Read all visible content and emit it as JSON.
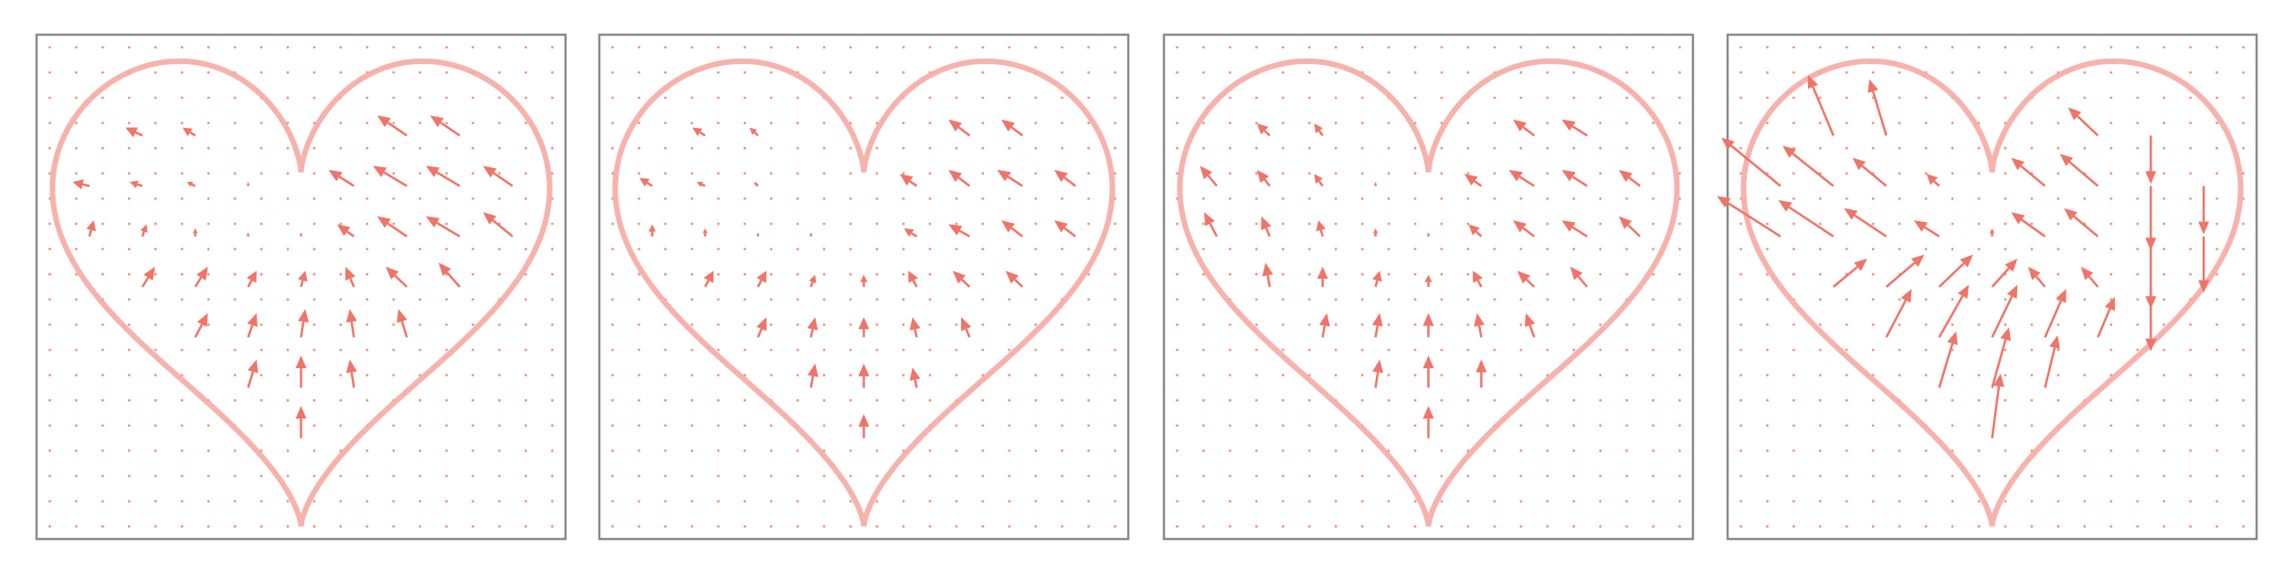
{
  "chart_data": {
    "type": "quiver",
    "xlim": [
      -1,
      1
    ],
    "ylim": [
      -1,
      1
    ],
    "grid": [
      -0.95,
      -0.85,
      -0.75,
      -0.65,
      -0.55,
      -0.45,
      -0.35,
      -0.25,
      -0.15,
      -0.05,
      0.05,
      0.15,
      0.25,
      0.35,
      0.45,
      0.55,
      0.65,
      0.75,
      0.85,
      0.95
    ],
    "color": "#f07468",
    "outline_color": "#f5aaa2",
    "x": [
      -0.6,
      -0.4,
      0.4,
      0.6,
      -0.8,
      -0.6,
      -0.4,
      -0.2,
      0.2,
      0.4,
      0.6,
      0.8,
      -0.8,
      -0.6,
      -0.4,
      -0.2,
      0,
      0.2,
      0.4,
      0.6,
      0.8,
      -0.6,
      -0.4,
      -0.2,
      0,
      0.2,
      0.4,
      0.6,
      -0.4,
      -0.2,
      0,
      0.2,
      0.4,
      -0.2,
      0,
      0.2,
      0
    ],
    "y": [
      0.6,
      0.6,
      0.6,
      0.6,
      0.4,
      0.4,
      0.4,
      0.4,
      0.4,
      0.4,
      0.4,
      0.4,
      0.2,
      0.2,
      0.2,
      0.2,
      0.2,
      0.2,
      0.2,
      0.2,
      0.2,
      0,
      0,
      0,
      0,
      0,
      0,
      0,
      -0.2,
      -0.2,
      -0.2,
      -0.2,
      -0.2,
      -0.4,
      -0.4,
      -0.4,
      -0.6
    ],
    "panels": [
      {
        "u": [
          -0.04,
          -0.03,
          -0.07,
          -0.07,
          -0.04,
          -0.03,
          -0.02,
          0,
          -0.06,
          -0.08,
          -0.08,
          -0.07,
          0.01,
          0.01,
          0,
          0,
          0,
          -0.04,
          -0.07,
          -0.08,
          -0.07,
          0.03,
          0.03,
          0.02,
          0.01,
          -0.02,
          -0.05,
          -0.05,
          0.03,
          0.02,
          0.01,
          -0.01,
          -0.02,
          0.02,
          0,
          -0.01,
          0
        ],
        "v": [
          0.02,
          0.02,
          0.05,
          0.05,
          0.01,
          0.01,
          0.01,
          0.01,
          0.04,
          0.05,
          0.05,
          0.05,
          0.04,
          0.03,
          0.02,
          0.01,
          0.01,
          0.03,
          0.05,
          0.05,
          0.06,
          0.05,
          0.05,
          0.04,
          0.04,
          0.05,
          0.05,
          0.06,
          0.06,
          0.06,
          0.07,
          0.07,
          0.07,
          0.07,
          0.08,
          0.07,
          0.08
        ]
      },
      {
        "u": [
          -0.03,
          -0.02,
          -0.05,
          -0.05,
          -0.03,
          -0.02,
          -0.01,
          0,
          -0.04,
          -0.05,
          -0.06,
          -0.05,
          0,
          0,
          0,
          0,
          0,
          -0.03,
          -0.05,
          -0.05,
          -0.05,
          0.02,
          0.02,
          0.01,
          0,
          -0.02,
          -0.04,
          -0.04,
          0.02,
          0.01,
          0,
          -0.01,
          -0.02,
          0.01,
          0,
          -0.01,
          0
        ],
        "v": [
          0.02,
          0.02,
          0.04,
          0.04,
          0.02,
          0.01,
          0.01,
          0,
          0.03,
          0.04,
          0.04,
          0.04,
          0.03,
          0.02,
          0.01,
          0.01,
          0,
          0.02,
          0.03,
          0.04,
          0.04,
          0.04,
          0.04,
          0.03,
          0.03,
          0.04,
          0.04,
          0.04,
          0.05,
          0.05,
          0.05,
          0.05,
          0.05,
          0.06,
          0.06,
          0.05,
          0.06
        ]
      },
      {
        "u": [
          -0.03,
          -0.02,
          -0.05,
          -0.06,
          -0.04,
          -0.03,
          -0.02,
          0,
          -0.04,
          -0.06,
          -0.06,
          -0.05,
          -0.03,
          -0.02,
          -0.01,
          0,
          0,
          -0.03,
          -0.05,
          -0.06,
          -0.05,
          -0.01,
          0,
          0.01,
          0,
          -0.02,
          -0.04,
          -0.04,
          0.01,
          0.01,
          0,
          -0.01,
          -0.02,
          0.01,
          0,
          0,
          0
        ],
        "v": [
          0.03,
          0.03,
          0.04,
          0.04,
          0.05,
          0.04,
          0.03,
          0.01,
          0.03,
          0.04,
          0.04,
          0.04,
          0.06,
          0.05,
          0.04,
          0.02,
          0.01,
          0.03,
          0.04,
          0.04,
          0.05,
          0.06,
          0.05,
          0.04,
          0.03,
          0.04,
          0.04,
          0.05,
          0.06,
          0.06,
          0.06,
          0.06,
          0.06,
          0.07,
          0.08,
          0.07,
          0.08
        ]
      },
      {
        "u": [
          -0.06,
          -0.04,
          -0.07,
          0,
          -0.14,
          -0.12,
          -0.08,
          -0.03,
          -0.08,
          -0.09,
          0,
          0,
          -0.15,
          -0.13,
          -0.1,
          -0.06,
          0,
          -0.08,
          -0.08,
          0,
          0,
          0.08,
          0.09,
          0.08,
          0.06,
          -0.04,
          -0.04,
          0,
          0.06,
          0.07,
          0.06,
          0.05,
          0.04,
          0.04,
          0.04,
          0.03,
          0.02
        ],
        "v": [
          0.15,
          0.14,
          0.07,
          -0.12,
          0.12,
          0.1,
          0.07,
          0.03,
          0.07,
          0.08,
          -0.16,
          -0.12,
          0.1,
          0.09,
          0.07,
          0.04,
          0.02,
          0.06,
          0.07,
          -0.18,
          -0.14,
          0.07,
          0.08,
          0.08,
          0.07,
          0.05,
          0.05,
          -0.16,
          0.12,
          0.13,
          0.13,
          0.12,
          0.1,
          0.14,
          0.15,
          0.13,
          0.16
        ]
      }
    ]
  }
}
